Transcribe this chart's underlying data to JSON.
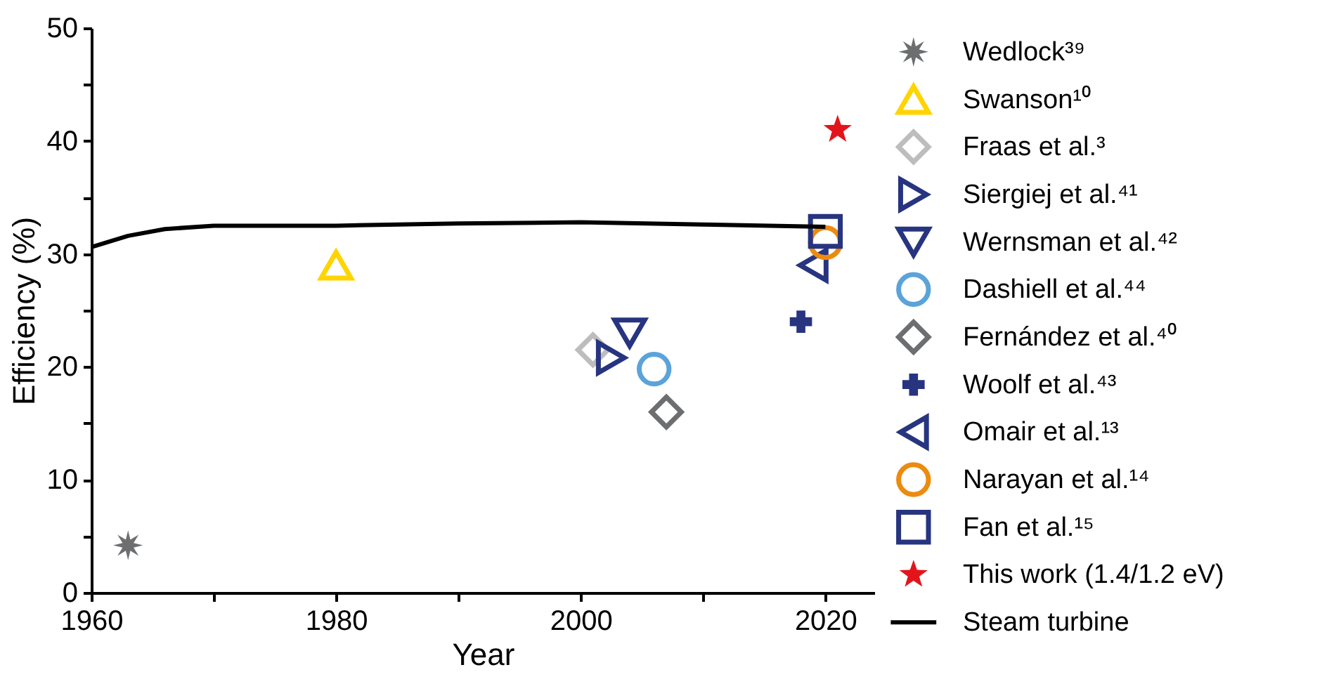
{
  "chart_data": {
    "type": "scatter",
    "xlabel": "Year",
    "ylabel": "Efficiency (%)",
    "xlim": [
      1960,
      2024
    ],
    "ylim": [
      0,
      50
    ],
    "xticks": [
      1960,
      {
        "value": 1970,
        "label": null
      },
      1980,
      {
        "value": 1990,
        "label": null
      },
      2000,
      {
        "value": 2010,
        "label": null
      },
      2020
    ],
    "yticks": [
      0,
      {
        "value": 5,
        "label": null
      },
      10,
      {
        "value": 15,
        "label": null
      },
      20,
      {
        "value": 25,
        "label": null
      },
      30,
      {
        "value": 35,
        "label": null
      },
      40,
      {
        "value": 45,
        "label": null
      },
      50
    ],
    "grid": false,
    "legend": "right",
    "series": [
      {
        "name": "Wedlock³⁹",
        "marker": "asterisk",
        "color": "#6d6e70",
        "x": [
          1963
        ],
        "values": [
          4.2
        ]
      },
      {
        "name": "Swanson¹⁰",
        "marker": "triangle-up",
        "color": "#ffd400",
        "x": [
          1980
        ],
        "values": [
          29
        ]
      },
      {
        "name": "Fraas et al.³",
        "marker": "diamond",
        "color": "#bdbdbd",
        "x": [
          2001
        ],
        "values": [
          21.5
        ]
      },
      {
        "name": "Siergiej et al.⁴¹",
        "marker": "triangle-right",
        "color": "#27347f",
        "x": [
          2002.5
        ],
        "values": [
          20.8
        ]
      },
      {
        "name": "Wernsman et al.⁴²",
        "marker": "triangle-down",
        "color": "#27347f",
        "x": [
          2004
        ],
        "values": [
          23
        ]
      },
      {
        "name": "Dashiell et al.⁴⁴",
        "marker": "circle",
        "color": "#5ba3d9",
        "x": [
          2006
        ],
        "values": [
          19.8
        ]
      },
      {
        "name": "Fernández et al.⁴⁰",
        "marker": "diamond",
        "color": "#6d6e70",
        "x": [
          2007
        ],
        "values": [
          16
        ]
      },
      {
        "name": "Woolf et al.⁴³",
        "marker": "cross",
        "color": "#27347f",
        "x": [
          2018
        ],
        "values": [
          24
        ]
      },
      {
        "name": "Omair et al.¹³",
        "marker": "triangle-left",
        "color": "#27347f",
        "x": [
          2019
        ],
        "values": [
          29
        ]
      },
      {
        "name": "Narayan et al.¹⁴",
        "marker": "circle",
        "color": "#ec8b10",
        "x": [
          2020
        ],
        "values": [
          31
        ]
      },
      {
        "name": "Fan et al.¹⁵",
        "marker": "square",
        "color": "#27347f",
        "x": [
          2020
        ],
        "values": [
          32
        ]
      },
      {
        "name": "This work (1.4/1.2 eV)",
        "marker": "star",
        "color": "#e3141b",
        "x": [
          2021
        ],
        "values": [
          41
        ]
      },
      {
        "name": "Steam turbine",
        "type": "line",
        "marker": "none",
        "line_style": "solid",
        "color": "#000000",
        "x": [
          1960,
          1963,
          1966,
          1970,
          1980,
          1990,
          2000,
          2010,
          2020
        ],
        "values": [
          30.6,
          31.6,
          32.2,
          32.5,
          32.5,
          32.7,
          32.8,
          32.6,
          32.4
        ]
      }
    ]
  }
}
